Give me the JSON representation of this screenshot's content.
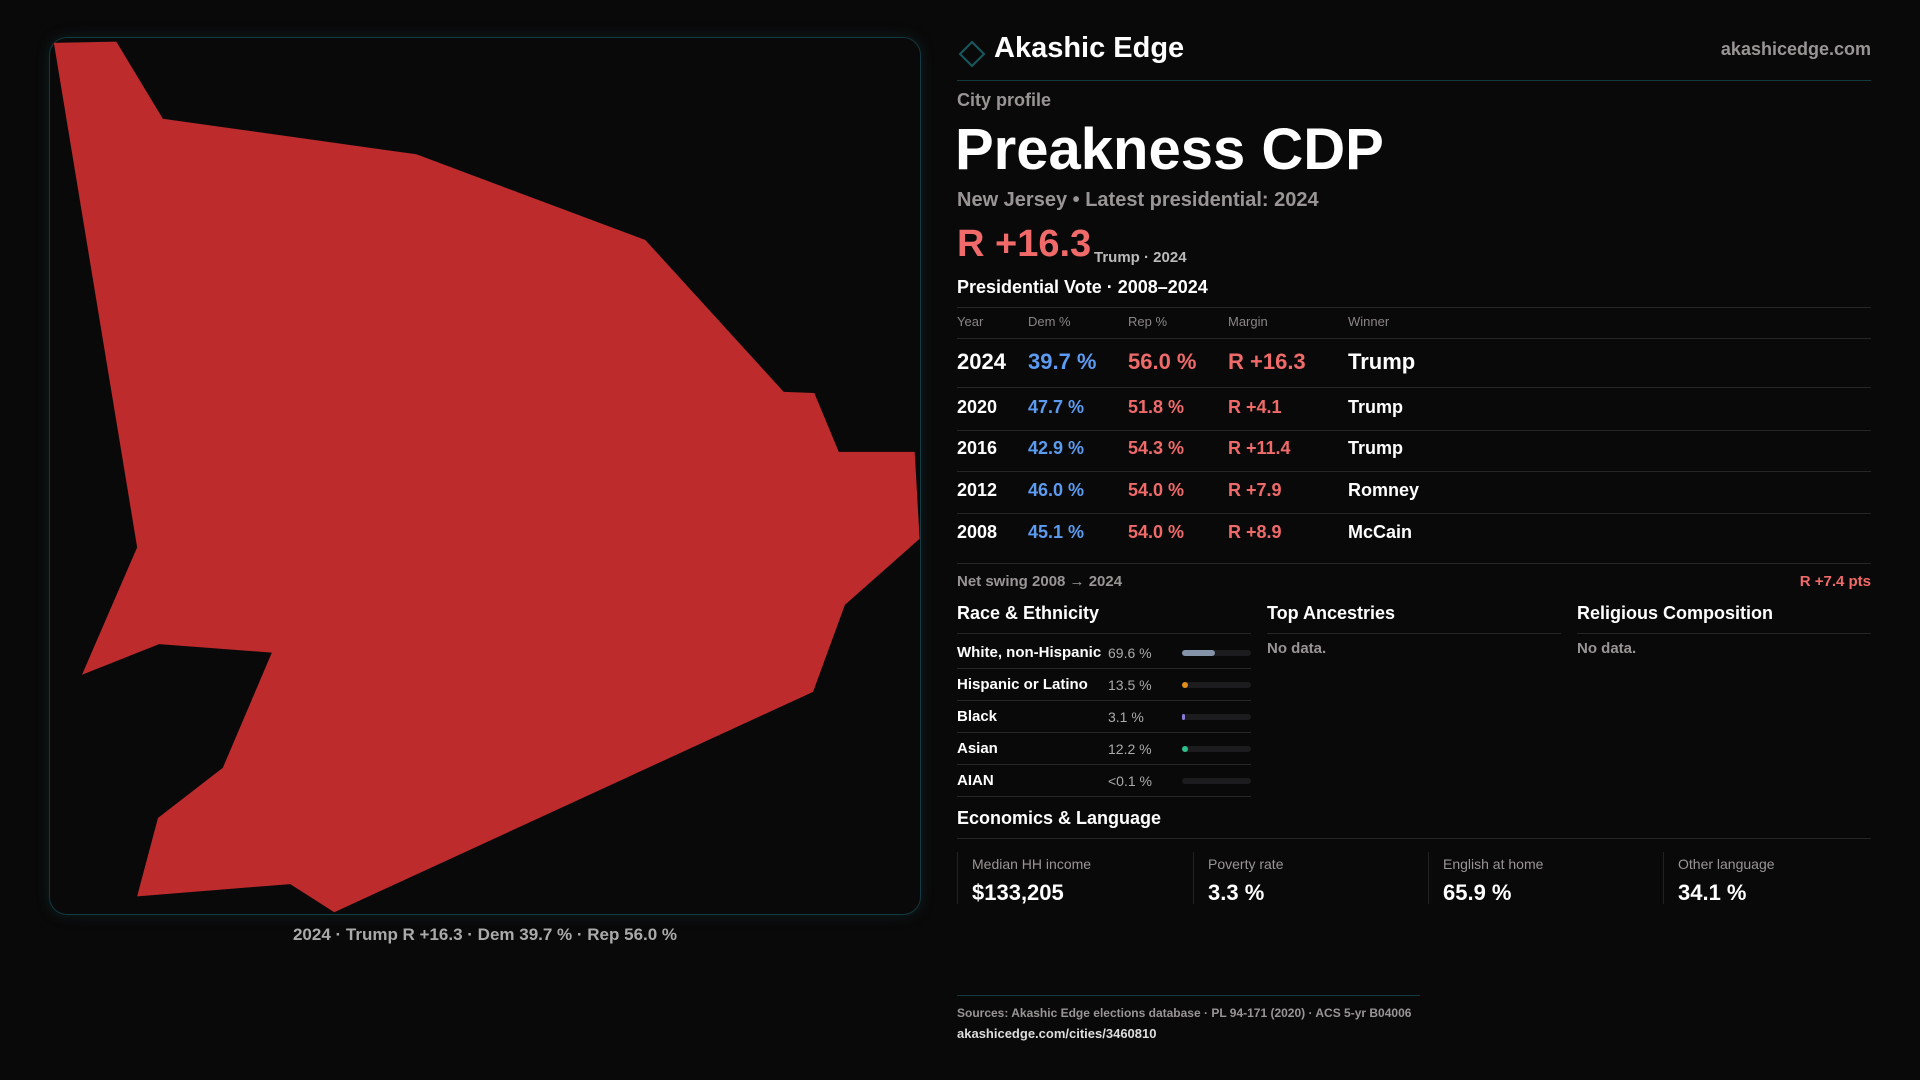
{
  "brand": {
    "name": "Akashic Edge",
    "site": "akashicedge.com"
  },
  "page": {
    "kicker": "City profile",
    "title": "Preakness CDP",
    "subtitle": "New Jersey • Latest presidential: 2024",
    "headline_margin": "R +16.3",
    "headline_note": "Trump · 2024"
  },
  "map": {
    "caption": "2024 · Trump R +16.3 · Dem 39.7 % · Rep 56.0 %",
    "fill": "#bd2b2d"
  },
  "votes": {
    "title": "Presidential Vote · 2008–2024",
    "headers": [
      "Year",
      "Dem %",
      "Rep %",
      "Margin",
      "Winner"
    ],
    "rows": [
      {
        "year": "2024",
        "dem": "39.7 %",
        "rep": "56.0 %",
        "margin": "R +16.3",
        "winner": "Trump"
      },
      {
        "year": "2020",
        "dem": "47.7 %",
        "rep": "51.8 %",
        "margin": "R +4.1",
        "winner": "Trump"
      },
      {
        "year": "2016",
        "dem": "42.9 %",
        "rep": "54.3 %",
        "margin": "R +11.4",
        "winner": "Trump"
      },
      {
        "year": "2012",
        "dem": "46.0 %",
        "rep": "54.0 %",
        "margin": "R +7.9",
        "winner": "Romney"
      },
      {
        "year": "2008",
        "dem": "45.1 %",
        "rep": "54.0 %",
        "margin": "R +8.9",
        "winner": "McCain"
      }
    ],
    "swing_label": "Net swing 2008 → 2024",
    "swing_value": "R +7.4 pts"
  },
  "race": {
    "title": "Race & Ethnicity",
    "items": [
      {
        "label": "White, non-Hispanic",
        "value": "69.6 %",
        "pct": 69.6,
        "color": "#8593a8"
      },
      {
        "label": "Hispanic or Latino",
        "value": "13.5 %",
        "pct": 13.5,
        "color": "#e0901a"
      },
      {
        "label": "Black",
        "value": "3.1 %",
        "pct": 3.1,
        "color": "#8a7ad8"
      },
      {
        "label": "Asian",
        "value": "12.2 %",
        "pct": 12.2,
        "color": "#2fbf8a"
      },
      {
        "label": "AIAN",
        "value": "<0.1 %",
        "pct": 0.05,
        "color": "#c06060"
      }
    ]
  },
  "ancestries": {
    "title": "Top Ancestries",
    "empty": "No data."
  },
  "religion": {
    "title": "Religious Composition",
    "empty": "No data."
  },
  "econ": {
    "title": "Economics & Language",
    "items": [
      {
        "label": "Median HH income",
        "value": "$133,205"
      },
      {
        "label": "Poverty rate",
        "value": "3.3 %"
      },
      {
        "label": "English at home",
        "value": "65.9 %"
      },
      {
        "label": "Other language",
        "value": "34.1 %"
      }
    ]
  },
  "footer": {
    "sources": "Sources: Akashic Edge elections database · PL 94-171 (2020) · ACS 5-yr B04006",
    "url": "akashicedge.com/cities/3460810"
  }
}
